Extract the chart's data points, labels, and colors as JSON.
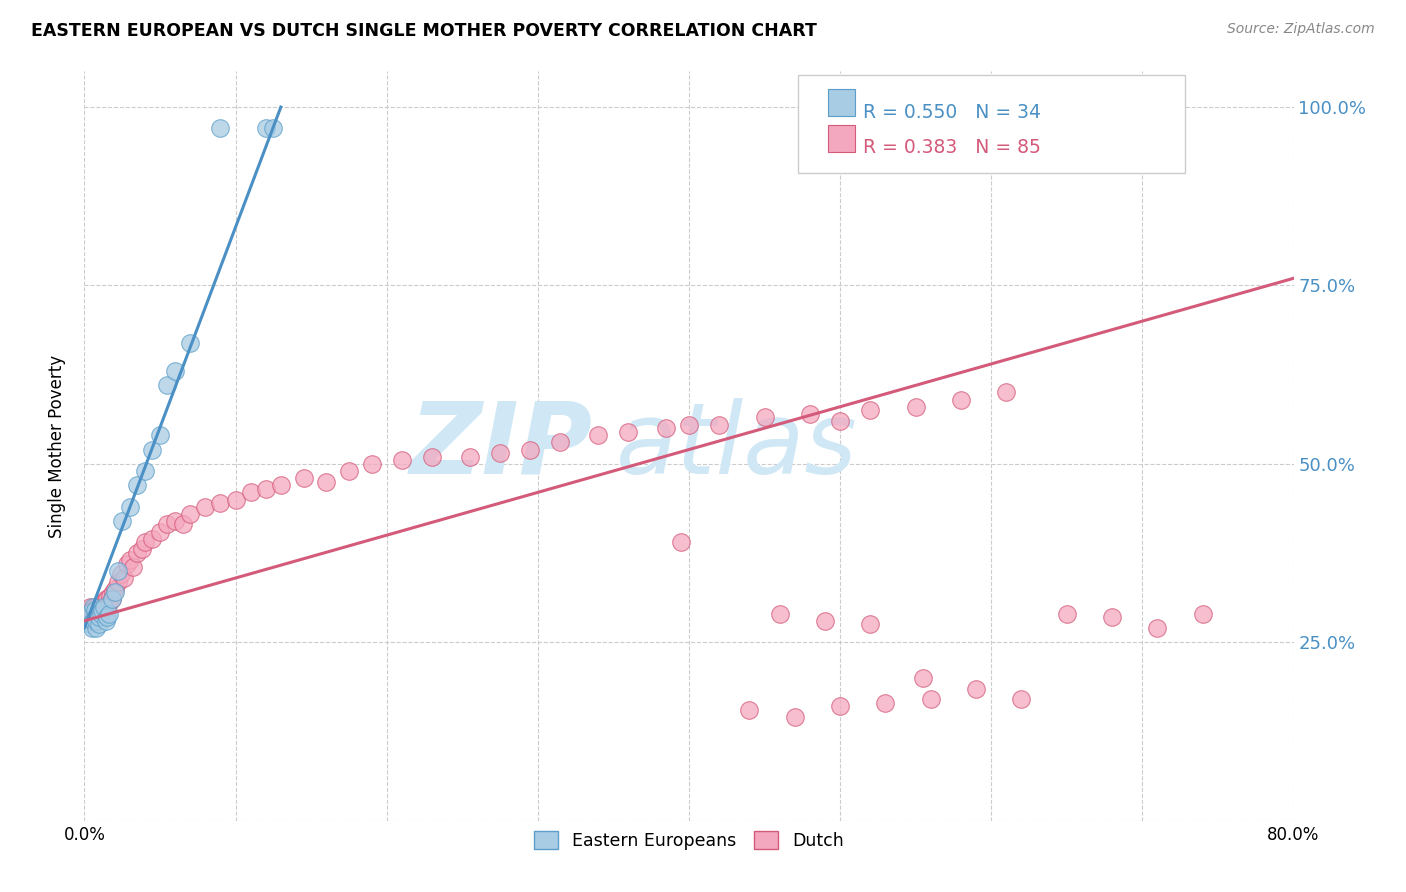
{
  "title": "EASTERN EUROPEAN VS DUTCH SINGLE MOTHER POVERTY CORRELATION CHART",
  "source": "Source: ZipAtlas.com",
  "ylabel": "Single Mother Poverty",
  "legend_label1": "Eastern Europeans",
  "legend_label2": "Dutch",
  "r1": 0.55,
  "n1": 34,
  "r2": 0.383,
  "n2": 85,
  "color1": "#a8cce4",
  "color2": "#f4a8bf",
  "edge_color1": "#5b9ec9",
  "edge_color2": "#d45a7a",
  "line_color1": "#4a90c4",
  "line_color2": "#d45a7a",
  "watermark_color": "#d0e8f5",
  "right_label_color": "#4a90c4",
  "xlim": [
    0.0,
    0.8
  ],
  "ylim": [
    0.0,
    1.05
  ],
  "ee_x": [
    0.002,
    0.003,
    0.004,
    0.005,
    0.006,
    0.006,
    0.007,
    0.007,
    0.008,
    0.008,
    0.009,
    0.01,
    0.01,
    0.011,
    0.012,
    0.013,
    0.014,
    0.015,
    0.016,
    0.018,
    0.02,
    0.022,
    0.025,
    0.03,
    0.035,
    0.04,
    0.045,
    0.05,
    0.055,
    0.06,
    0.07,
    0.09,
    0.12,
    0.125
  ],
  "ee_y": [
    0.285,
    0.29,
    0.275,
    0.27,
    0.28,
    0.3,
    0.285,
    0.295,
    0.27,
    0.28,
    0.29,
    0.275,
    0.285,
    0.29,
    0.295,
    0.3,
    0.28,
    0.285,
    0.29,
    0.31,
    0.32,
    0.35,
    0.42,
    0.44,
    0.47,
    0.49,
    0.52,
    0.54,
    0.61,
    0.63,
    0.67,
    0.97,
    0.97,
    0.97
  ],
  "dutch_x": [
    0.002,
    0.003,
    0.004,
    0.004,
    0.005,
    0.005,
    0.006,
    0.006,
    0.007,
    0.007,
    0.008,
    0.008,
    0.009,
    0.01,
    0.01,
    0.011,
    0.012,
    0.013,
    0.014,
    0.015,
    0.015,
    0.016,
    0.017,
    0.018,
    0.019,
    0.02,
    0.022,
    0.024,
    0.026,
    0.028,
    0.03,
    0.032,
    0.035,
    0.038,
    0.04,
    0.045,
    0.05,
    0.055,
    0.06,
    0.065,
    0.07,
    0.08,
    0.09,
    0.1,
    0.11,
    0.12,
    0.13,
    0.145,
    0.16,
    0.175,
    0.19,
    0.21,
    0.23,
    0.255,
    0.275,
    0.295,
    0.315,
    0.34,
    0.36,
    0.385,
    0.395,
    0.4,
    0.42,
    0.45,
    0.48,
    0.5,
    0.52,
    0.55,
    0.58,
    0.61,
    0.46,
    0.49,
    0.52,
    0.555,
    0.59,
    0.62,
    0.65,
    0.68,
    0.71,
    0.74,
    0.44,
    0.47,
    0.5,
    0.53,
    0.56
  ],
  "dutch_y": [
    0.29,
    0.285,
    0.295,
    0.3,
    0.285,
    0.295,
    0.28,
    0.295,
    0.285,
    0.3,
    0.28,
    0.3,
    0.295,
    0.285,
    0.3,
    0.295,
    0.305,
    0.3,
    0.31,
    0.295,
    0.31,
    0.305,
    0.315,
    0.31,
    0.32,
    0.325,
    0.335,
    0.345,
    0.34,
    0.36,
    0.365,
    0.355,
    0.375,
    0.38,
    0.39,
    0.395,
    0.405,
    0.415,
    0.42,
    0.415,
    0.43,
    0.44,
    0.445,
    0.45,
    0.46,
    0.465,
    0.47,
    0.48,
    0.475,
    0.49,
    0.5,
    0.505,
    0.51,
    0.51,
    0.515,
    0.52,
    0.53,
    0.54,
    0.545,
    0.55,
    0.39,
    0.555,
    0.555,
    0.565,
    0.57,
    0.56,
    0.575,
    0.58,
    0.59,
    0.6,
    0.29,
    0.28,
    0.275,
    0.2,
    0.185,
    0.17,
    0.29,
    0.285,
    0.27,
    0.29,
    0.155,
    0.145,
    0.16,
    0.165,
    0.17
  ],
  "ee_line_x0": 0.0,
  "ee_line_y0": 0.27,
  "ee_line_x1": 0.13,
  "ee_line_y1": 1.0,
  "dutch_line_x0": 0.0,
  "dutch_line_y0": 0.28,
  "dutch_line_x1": 0.8,
  "dutch_line_y1": 0.76
}
